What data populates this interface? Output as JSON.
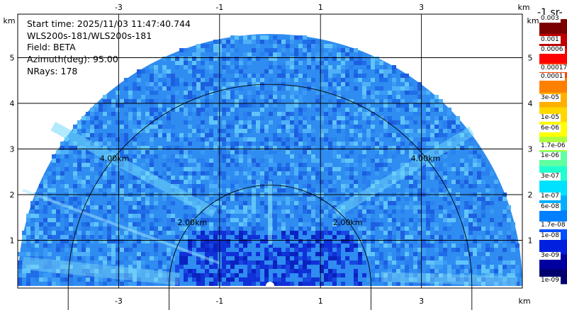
{
  "info": {
    "start_time": "Start time: 2025/11/03 11:47:40.744",
    "instrument": "WLS200s-181/WLS200s-181",
    "field": "Field: BETA",
    "azimuth": "Azimuth(deg): 95.00",
    "nrays": "NRays: 178"
  },
  "colorbar": {
    "unit_title": "-1 sr-",
    "labels": [
      "0.003",
      "0.001",
      "0.0006",
      "0.00017",
      "0.0001",
      "3e-05",
      "1e-05",
      "6e-06",
      "1.7e-06",
      "1e-06",
      "3e-07",
      "1e-07",
      "6e-08",
      "1.7e-08",
      "1e-08",
      "3e-09",
      "1e-09"
    ],
    "label_positions": [
      0.0,
      0.08,
      0.118,
      0.188,
      0.22,
      0.3,
      0.375,
      0.415,
      0.48,
      0.52,
      0.595,
      0.67,
      0.71,
      0.78,
      0.82,
      0.895,
      0.99
    ],
    "colors": [
      "#7a0000",
      "#c00000",
      "#ff0000",
      "#ff4000",
      "#ff8000",
      "#ffb000",
      "#ffd800",
      "#ffff00",
      "#b0ff40",
      "#60ffa0",
      "#20ffd0",
      "#00e0ff",
      "#00b0ff",
      "#0080ff",
      "#0050ff",
      "#0020e0",
      "#0000a0",
      "#000070"
    ]
  },
  "chart_data": {
    "type": "heatmap",
    "description_of_axes": "RHI range-height display",
    "x_unit": "km",
    "y_unit": "km",
    "xticks": [
      "-3",
      "-1",
      "1",
      "3"
    ],
    "xtick_values": [
      -3,
      -1,
      1,
      3
    ],
    "yticks": [
      "1",
      "2",
      "3",
      "4",
      "5"
    ],
    "ytick_values": [
      1,
      2,
      3,
      4,
      5
    ],
    "xlim": [
      -5.0,
      5.0
    ],
    "ylim": [
      0,
      6.0
    ],
    "range_rings": [
      {
        "label": "2.00km",
        "radius_km": 2.0
      },
      {
        "label": "4.00km",
        "radius_km": 4.0
      }
    ],
    "max_range_km": 5.0,
    "grid": true
  }
}
